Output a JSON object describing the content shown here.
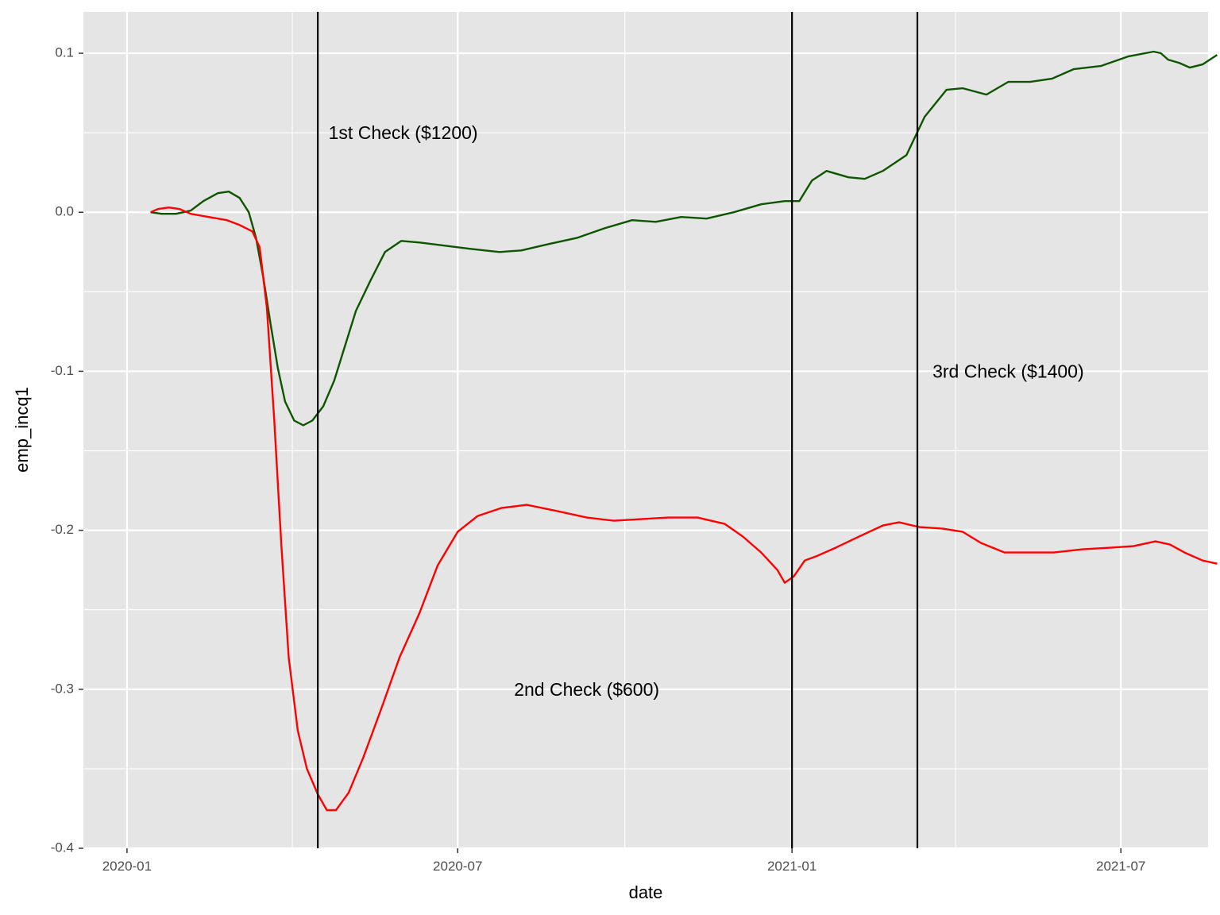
{
  "chart_data": {
    "type": "line",
    "xlabel": "date",
    "ylabel": "emp_incq1",
    "x_tick_labels": [
      "2020-01",
      "2020-07",
      "2021-01",
      "2021-07"
    ],
    "y_tick_labels": [
      "0.1",
      "0.0",
      "-0.1",
      "-0.2",
      "-0.3",
      "-0.4"
    ],
    "y_ticks": [
      0.1,
      0.0,
      -0.1,
      -0.2,
      -0.3,
      -0.4
    ],
    "x_ticks": [
      "2020-01-01",
      "2020-07-01",
      "2021-01-01",
      "2021-07-01"
    ],
    "xlim": [
      "2019-12-08",
      "2021-08-18"
    ],
    "ylim": [
      -0.4,
      0.126
    ],
    "grid": true,
    "legend": "none",
    "colors": {
      "panel": "#e5e5e5",
      "grid": "#ffffff",
      "vline": "#000000"
    },
    "vlines": [
      "2020-04-15",
      "2021-01-01",
      "2021-03-11"
    ],
    "annotations": [
      {
        "text": "1st Check ($1200)",
        "x": "2020-06-01",
        "y": 0.049
      },
      {
        "text": "2nd Check ($600)",
        "x": "2020-09-10",
        "y": -0.301
      },
      {
        "text": "3rd Check ($1400)",
        "x": "2021-04-30",
        "y": -0.101
      }
    ],
    "series": [
      {
        "color": "#0e5500",
        "points": [
          [
            "2020-01-14",
            0.0
          ],
          [
            "2020-01-20",
            -0.001
          ],
          [
            "2020-01-28",
            -0.001
          ],
          [
            "2020-02-05",
            0.001
          ],
          [
            "2020-02-12",
            0.007
          ],
          [
            "2020-02-20",
            0.012
          ],
          [
            "2020-02-26",
            0.013
          ],
          [
            "2020-03-03",
            0.009
          ],
          [
            "2020-03-08",
            0.0
          ],
          [
            "2020-03-12",
            -0.016
          ],
          [
            "2020-03-16",
            -0.041
          ],
          [
            "2020-03-20",
            -0.07
          ],
          [
            "2020-03-24",
            -0.098
          ],
          [
            "2020-03-28",
            -0.119
          ],
          [
            "2020-04-02",
            -0.131
          ],
          [
            "2020-04-07",
            -0.134
          ],
          [
            "2020-04-12",
            -0.131
          ],
          [
            "2020-04-18",
            -0.122
          ],
          [
            "2020-04-24",
            -0.106
          ],
          [
            "2020-04-30",
            -0.084
          ],
          [
            "2020-05-06",
            -0.062
          ],
          [
            "2020-05-14",
            -0.043
          ],
          [
            "2020-05-22",
            -0.025
          ],
          [
            "2020-05-31",
            -0.018
          ],
          [
            "2020-06-10",
            -0.019
          ],
          [
            "2020-06-24",
            -0.021
          ],
          [
            "2020-07-08",
            -0.023
          ],
          [
            "2020-07-24",
            -0.025
          ],
          [
            "2020-08-05",
            -0.024
          ],
          [
            "2020-08-20",
            -0.02
          ],
          [
            "2020-09-05",
            -0.016
          ],
          [
            "2020-09-20",
            -0.01
          ],
          [
            "2020-10-05",
            -0.005
          ],
          [
            "2020-10-18",
            -0.006
          ],
          [
            "2020-11-01",
            -0.003
          ],
          [
            "2020-11-15",
            -0.004
          ],
          [
            "2020-11-30",
            0.0
          ],
          [
            "2020-12-15",
            0.005
          ],
          [
            "2020-12-28",
            0.007
          ],
          [
            "2021-01-05",
            0.007
          ],
          [
            "2021-01-12",
            0.02
          ],
          [
            "2021-01-20",
            0.026
          ],
          [
            "2021-02-01",
            0.022
          ],
          [
            "2021-02-10",
            0.021
          ],
          [
            "2021-02-20",
            0.026
          ],
          [
            "2021-03-05",
            0.036
          ],
          [
            "2021-03-15",
            0.06
          ],
          [
            "2021-03-27",
            0.077
          ],
          [
            "2021-04-05",
            0.078
          ],
          [
            "2021-04-18",
            0.074
          ],
          [
            "2021-04-30",
            0.082
          ],
          [
            "2021-05-12",
            0.082
          ],
          [
            "2021-05-24",
            0.084
          ],
          [
            "2021-06-05",
            0.09
          ],
          [
            "2021-06-20",
            0.092
          ],
          [
            "2021-07-05",
            0.098
          ],
          [
            "2021-07-19",
            0.101
          ],
          [
            "2021-07-23",
            0.1
          ],
          [
            "2021-07-27",
            0.096
          ],
          [
            "2021-08-02",
            0.094
          ],
          [
            "2021-08-08",
            0.091
          ],
          [
            "2021-08-15",
            0.093
          ],
          [
            "2021-08-23",
            0.099
          ]
        ]
      },
      {
        "color": "#ff0000",
        "points": [
          [
            "2020-01-14",
            0.0
          ],
          [
            "2020-01-18",
            0.002
          ],
          [
            "2020-01-24",
            0.003
          ],
          [
            "2020-01-30",
            0.002
          ],
          [
            "2020-02-05",
            -0.001
          ],
          [
            "2020-02-15",
            -0.003
          ],
          [
            "2020-02-25",
            -0.005
          ],
          [
            "2020-03-03",
            -0.008
          ],
          [
            "2020-03-10",
            -0.012
          ],
          [
            "2020-03-14",
            -0.022
          ],
          [
            "2020-03-18",
            -0.06
          ],
          [
            "2020-03-22",
            -0.13
          ],
          [
            "2020-03-26",
            -0.21
          ],
          [
            "2020-03-30",
            -0.28
          ],
          [
            "2020-04-04",
            -0.326
          ],
          [
            "2020-04-09",
            -0.35
          ],
          [
            "2020-04-15",
            -0.366
          ],
          [
            "2020-04-20",
            -0.376
          ],
          [
            "2020-04-25",
            -0.376
          ],
          [
            "2020-05-02",
            -0.365
          ],
          [
            "2020-05-10",
            -0.343
          ],
          [
            "2020-05-20",
            -0.312
          ],
          [
            "2020-05-30",
            -0.28
          ],
          [
            "2020-06-10",
            -0.252
          ],
          [
            "2020-06-20",
            -0.222
          ],
          [
            "2020-07-01",
            -0.201
          ],
          [
            "2020-07-12",
            -0.191
          ],
          [
            "2020-07-25",
            -0.186
          ],
          [
            "2020-08-08",
            -0.184
          ],
          [
            "2020-08-25",
            -0.188
          ],
          [
            "2020-09-10",
            -0.192
          ],
          [
            "2020-09-25",
            -0.194
          ],
          [
            "2020-10-10",
            -0.193
          ],
          [
            "2020-10-25",
            -0.192
          ],
          [
            "2020-11-10",
            -0.192
          ],
          [
            "2020-11-25",
            -0.196
          ],
          [
            "2020-12-05",
            -0.204
          ],
          [
            "2020-12-15",
            -0.214
          ],
          [
            "2020-12-24",
            -0.225
          ],
          [
            "2020-12-28",
            -0.233
          ],
          [
            "2021-01-02",
            -0.229
          ],
          [
            "2021-01-08",
            -0.219
          ],
          [
            "2021-01-15",
            -0.216
          ],
          [
            "2021-01-25",
            -0.211
          ],
          [
            "2021-02-05",
            -0.205
          ],
          [
            "2021-02-20",
            -0.197
          ],
          [
            "2021-03-01",
            -0.195
          ],
          [
            "2021-03-12",
            -0.198
          ],
          [
            "2021-03-25",
            -0.199
          ],
          [
            "2021-04-05",
            -0.201
          ],
          [
            "2021-04-15",
            -0.208
          ],
          [
            "2021-04-28",
            -0.214
          ],
          [
            "2021-05-10",
            -0.214
          ],
          [
            "2021-05-25",
            -0.214
          ],
          [
            "2021-06-10",
            -0.212
          ],
          [
            "2021-06-25",
            -0.211
          ],
          [
            "2021-07-08",
            -0.21
          ],
          [
            "2021-07-20",
            -0.207
          ],
          [
            "2021-07-28",
            -0.209
          ],
          [
            "2021-08-05",
            -0.214
          ],
          [
            "2021-08-15",
            -0.219
          ],
          [
            "2021-08-23",
            -0.221
          ]
        ]
      }
    ]
  }
}
